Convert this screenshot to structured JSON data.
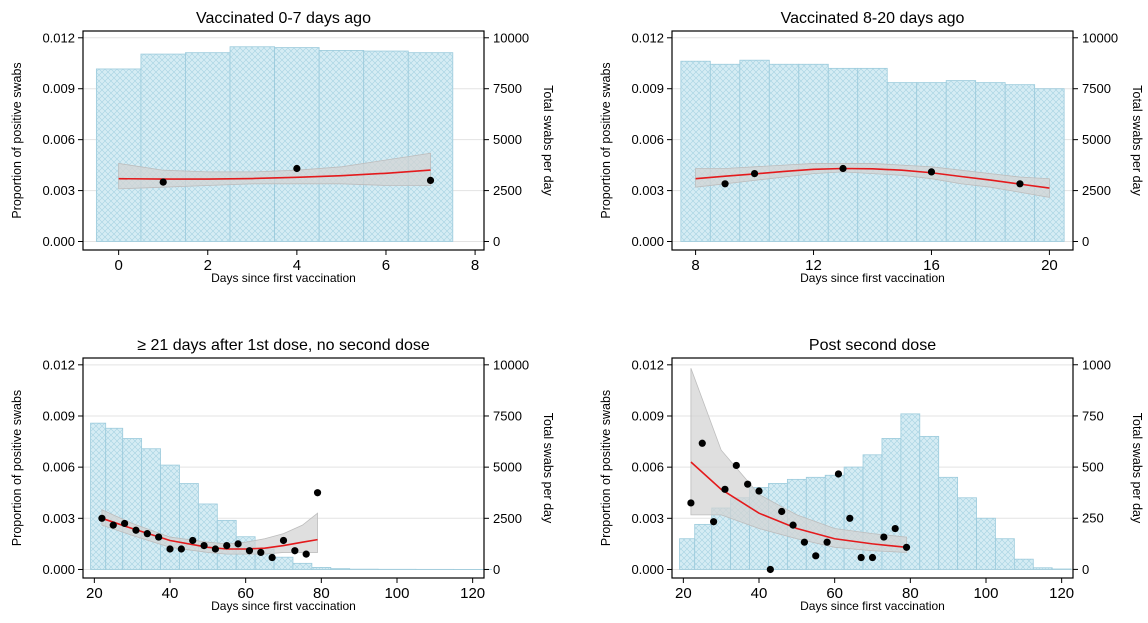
{
  "chart_data": [
    {
      "type": "bar+line+scatter",
      "title": "Vaccinated 0-7 days ago",
      "xlabel": "Days since first vaccination",
      "ylabel": "Proportion of positive swabs",
      "ylabel_right": "Total swabs per day",
      "xlim": [
        -0.8,
        8.2
      ],
      "xticks": [
        0,
        2,
        4,
        6,
        8
      ],
      "ylim": [
        -0.0005,
        0.0124
      ],
      "yticks": [
        0,
        0.003,
        0.006,
        0.009,
        0.012
      ],
      "ytick_labels": [
        "0.000",
        "0.003",
        "0.006",
        "0.009",
        "0.012"
      ],
      "y2lim": [
        -417,
        10333
      ],
      "y2ticks": [
        0,
        2500,
        5000,
        7500,
        10000
      ],
      "bars": {
        "name": "Total swabs per day",
        "x": [
          0,
          1,
          2,
          3,
          4,
          5,
          6,
          7
        ],
        "values": [
          8470,
          9200,
          9270,
          9560,
          9520,
          9380,
          9350,
          9270
        ]
      },
      "ribbon": {
        "x": [
          0,
          1,
          2,
          3,
          4,
          5,
          6,
          7
        ],
        "lower": [
          0.0031,
          0.0032,
          0.0033,
          0.0034,
          0.0034,
          0.0034,
          0.0033,
          0.0033
        ],
        "upper": [
          0.0046,
          0.0042,
          0.0041,
          0.0041,
          0.0042,
          0.0044,
          0.0048,
          0.0052
        ]
      },
      "fit": {
        "x": [
          0,
          1,
          2,
          3,
          4,
          5,
          6,
          7
        ],
        "values": [
          0.0037,
          0.00368,
          0.00368,
          0.00371,
          0.00378,
          0.00388,
          0.00402,
          0.00421
        ]
      },
      "points": {
        "x": [
          1,
          4,
          7
        ],
        "values": [
          0.0035,
          0.0043,
          0.0036
        ]
      },
      "grid": true,
      "colors": {
        "bars": "#add8e6",
        "fit": "#e41a1c",
        "ribbon": "#cccccc",
        "points": "#000000"
      }
    },
    {
      "type": "bar+line+scatter",
      "title": "Vaccinated 8-20 days ago",
      "xlabel": "Days since first vaccination",
      "ylabel": "Proportion of positive swabs",
      "ylabel_right": "Total swabs per day",
      "xlim": [
        7.2,
        20.8
      ],
      "xticks": [
        8,
        12,
        16,
        20
      ],
      "ylim": [
        -0.0005,
        0.0124
      ],
      "yticks": [
        0,
        0.003,
        0.006,
        0.009,
        0.012
      ],
      "ytick_labels": [
        "0.000",
        "0.003",
        "0.006",
        "0.009",
        "0.012"
      ],
      "y2lim": [
        -417,
        10333
      ],
      "y2ticks": [
        0,
        2500,
        5000,
        7500,
        10000
      ],
      "bars": {
        "name": "Total swabs per day",
        "x": [
          8,
          9,
          10,
          11,
          12,
          13,
          14,
          15,
          16,
          17,
          18,
          19,
          20
        ],
        "values": [
          8850,
          8700,
          8900,
          8700,
          8700,
          8500,
          8500,
          7800,
          7800,
          7900,
          7800,
          7700,
          7500
        ]
      },
      "ribbon": {
        "x": [
          8,
          9,
          10,
          11,
          12,
          13,
          14,
          15,
          16,
          17,
          18,
          19,
          20
        ],
        "lower": [
          0.0032,
          0.0034,
          0.0036,
          0.0038,
          0.004,
          0.0041,
          0.004,
          0.0039,
          0.0037,
          0.0034,
          0.0032,
          0.0029,
          0.0026
        ],
        "upper": [
          0.0043,
          0.0043,
          0.0044,
          0.0045,
          0.0046,
          0.0046,
          0.0046,
          0.0045,
          0.0044,
          0.0042,
          0.004,
          0.0038,
          0.0037
        ]
      },
      "fit": {
        "x": [
          8,
          9,
          10,
          11,
          12,
          13,
          14,
          15,
          16,
          17,
          18,
          19,
          20
        ],
        "values": [
          0.0037,
          0.00385,
          0.00398,
          0.00413,
          0.00425,
          0.0043,
          0.00428,
          0.0042,
          0.00405,
          0.00383,
          0.00362,
          0.00338,
          0.00315
        ]
      },
      "points": {
        "x": [
          9,
          10,
          13,
          16,
          19
        ],
        "values": [
          0.0034,
          0.004,
          0.0043,
          0.0041,
          0.0034
        ]
      },
      "grid": true,
      "colors": {
        "bars": "#add8e6",
        "fit": "#e41a1c",
        "ribbon": "#cccccc",
        "points": "#000000"
      }
    },
    {
      "type": "bar+line+scatter",
      "title": "≥ 21 days after 1st dose, no second dose",
      "xlabel": "Days since first vaccination",
      "ylabel": "Proportion of positive swabs",
      "ylabel_right": "Total swabs per day",
      "xlim": [
        17,
        123
      ],
      "xticks": [
        20,
        40,
        60,
        80,
        100,
        120
      ],
      "ylim": [
        -0.0005,
        0.0124
      ],
      "yticks": [
        0,
        0.003,
        0.006,
        0.009,
        0.012
      ],
      "ytick_labels": [
        "0.000",
        "0.003",
        "0.006",
        "0.009",
        "0.012"
      ],
      "y2lim": [
        -417,
        10333
      ],
      "y2ticks": [
        0,
        2500,
        5000,
        7500,
        10000
      ],
      "bars": {
        "name": "Total swabs per day",
        "x": [
          21,
          25,
          30,
          35,
          40,
          45,
          50,
          55,
          60,
          65,
          70,
          75,
          80,
          85,
          90,
          100,
          110,
          120
        ],
        "values": [
          7150,
          6900,
          6400,
          5900,
          5100,
          4200,
          3200,
          2400,
          1600,
          1000,
          600,
          300,
          100,
          40,
          15,
          8,
          5,
          3
        ]
      },
      "ribbon": {
        "x": [
          22,
          30,
          40,
          50,
          55,
          60,
          65,
          70,
          75,
          79
        ],
        "lower": [
          0.0026,
          0.002,
          0.0013,
          0.001,
          0.0009,
          0.0009,
          0.0009,
          0.001,
          0.001,
          0.001
        ],
        "upper": [
          0.0035,
          0.0027,
          0.0019,
          0.0016,
          0.0015,
          0.0016,
          0.0018,
          0.0021,
          0.0026,
          0.0033
        ]
      },
      "fit": {
        "x": [
          22,
          30,
          40,
          50,
          55,
          60,
          65,
          70,
          75,
          79
        ],
        "values": [
          0.003,
          0.0024,
          0.0017,
          0.0013,
          0.0012,
          0.0012,
          0.00125,
          0.0014,
          0.0016,
          0.00175
        ]
      },
      "points": {
        "x": [
          22,
          25,
          28,
          31,
          34,
          37,
          40,
          43,
          46,
          49,
          52,
          55,
          58,
          61,
          64,
          67,
          70,
          73,
          76,
          79
        ],
        "values": [
          0.003,
          0.0026,
          0.0027,
          0.0023,
          0.0021,
          0.0019,
          0.0012,
          0.0012,
          0.0017,
          0.0014,
          0.0012,
          0.0014,
          0.0015,
          0.0011,
          0.001,
          0.0007,
          0.0017,
          0.0011,
          0.0009,
          0.0045
        ]
      },
      "grid": true,
      "colors": {
        "bars": "#add8e6",
        "fit": "#e41a1c",
        "ribbon": "#cccccc",
        "points": "#000000"
      }
    },
    {
      "type": "bar+line+scatter",
      "title": "Post second dose",
      "xlabel": "Days since first vaccination",
      "ylabel": "Proportion of positive swabs",
      "ylabel_right": "Total swabs per day",
      "xlim": [
        17,
        123
      ],
      "xticks": [
        20,
        40,
        60,
        80,
        100,
        120
      ],
      "ylim": [
        -0.0005,
        0.0124
      ],
      "yticks": [
        0,
        0.003,
        0.006,
        0.009,
        0.012
      ],
      "ytick_labels": [
        "0.000",
        "0.003",
        "0.006",
        "0.009",
        "0.012"
      ],
      "y2lim": [
        -42,
        1033
      ],
      "y2ticks": [
        0,
        250,
        500,
        750,
        1000
      ],
      "bars": {
        "name": "Total swabs per day",
        "x": [
          21,
          25,
          30,
          35,
          40,
          45,
          50,
          55,
          60,
          65,
          70,
          75,
          80,
          85,
          90,
          95,
          100,
          105,
          110,
          115,
          120
        ],
        "values": [
          150,
          220,
          300,
          350,
          400,
          420,
          440,
          450,
          460,
          500,
          560,
          640,
          760,
          650,
          450,
          350,
          250,
          150,
          50,
          8,
          2
        ]
      },
      "ribbon": {
        "x": [
          22,
          30,
          40,
          50,
          60,
          70,
          79
        ],
        "lower": [
          0.0032,
          0.0032,
          0.0024,
          0.0018,
          0.0013,
          0.0011,
          0.001
        ],
        "upper": [
          0.0118,
          0.007,
          0.0044,
          0.0032,
          0.0024,
          0.0021,
          0.0019
        ]
      },
      "fit": {
        "x": [
          22,
          30,
          40,
          50,
          60,
          70,
          79
        ],
        "values": [
          0.0063,
          0.0047,
          0.0033,
          0.0024,
          0.0018,
          0.0015,
          0.0013
        ]
      },
      "points": {
        "x": [
          22,
          25,
          28,
          31,
          34,
          37,
          40,
          43,
          46,
          49,
          52,
          55,
          58,
          61,
          64,
          67,
          70,
          73,
          76,
          79
        ],
        "values": [
          0.0039,
          0.0074,
          0.0028,
          0.0047,
          0.0061,
          0.005,
          0.0046,
          0.0,
          0.0034,
          0.0026,
          0.0016,
          0.0008,
          0.0016,
          0.0056,
          0.003,
          0.0007,
          0.0007,
          0.0019,
          0.0024,
          0.0013
        ]
      },
      "grid": true,
      "colors": {
        "bars": "#add8e6",
        "fit": "#e41a1c",
        "ribbon": "#cccccc",
        "points": "#000000"
      }
    }
  ]
}
